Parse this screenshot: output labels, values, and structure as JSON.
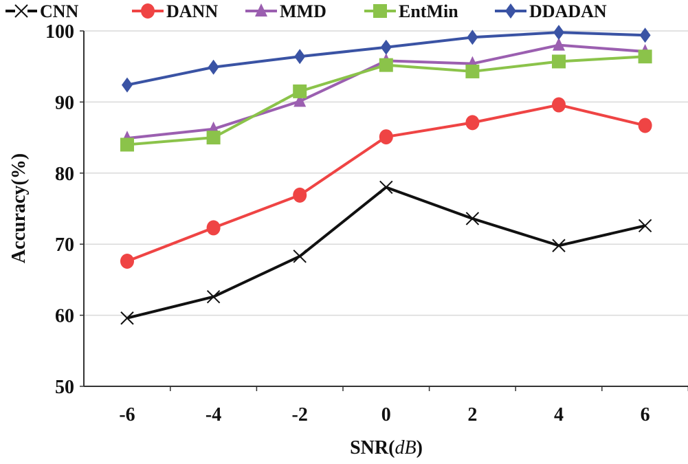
{
  "chart_data": {
    "type": "line",
    "title": "",
    "xlabel": "SNR",
    "xlabel_unit": "dB",
    "ylabel": "Accuracy(%)",
    "x": [
      -6,
      -4,
      -2,
      0,
      2,
      4,
      6
    ],
    "xticks": [
      "-6",
      "-4",
      "-2",
      "0",
      "2",
      "4",
      "6"
    ],
    "yticks": [
      "50",
      "60",
      "70",
      "80",
      "90",
      "100"
    ],
    "ylim": [
      50,
      100
    ],
    "xlim": [
      -7,
      7
    ],
    "grid": "horizontal",
    "legend_position": "top",
    "series": [
      {
        "name": "CNN",
        "color": "#111111",
        "marker": "x",
        "values": [
          59.6,
          62.6,
          68.3,
          78.0,
          73.6,
          69.8,
          72.6
        ]
      },
      {
        "name": "DANN",
        "color": "#ef4444",
        "marker": "circle",
        "values": [
          67.6,
          72.3,
          76.9,
          85.1,
          87.1,
          89.6,
          86.7
        ]
      },
      {
        "name": "MMD",
        "color": "#9b5fb0",
        "marker": "triangle",
        "values": [
          84.9,
          86.2,
          90.1,
          95.8,
          95.4,
          98.0,
          97.1
        ]
      },
      {
        "name": "EntMin",
        "color": "#8bc34a",
        "marker": "square",
        "values": [
          84.0,
          85.0,
          91.5,
          95.2,
          94.3,
          95.7,
          96.4
        ]
      },
      {
        "name": "DDADAN",
        "color": "#3a53a4",
        "marker": "diamond",
        "values": [
          92.4,
          94.9,
          96.4,
          97.7,
          99.1,
          99.8,
          99.4
        ]
      }
    ]
  }
}
